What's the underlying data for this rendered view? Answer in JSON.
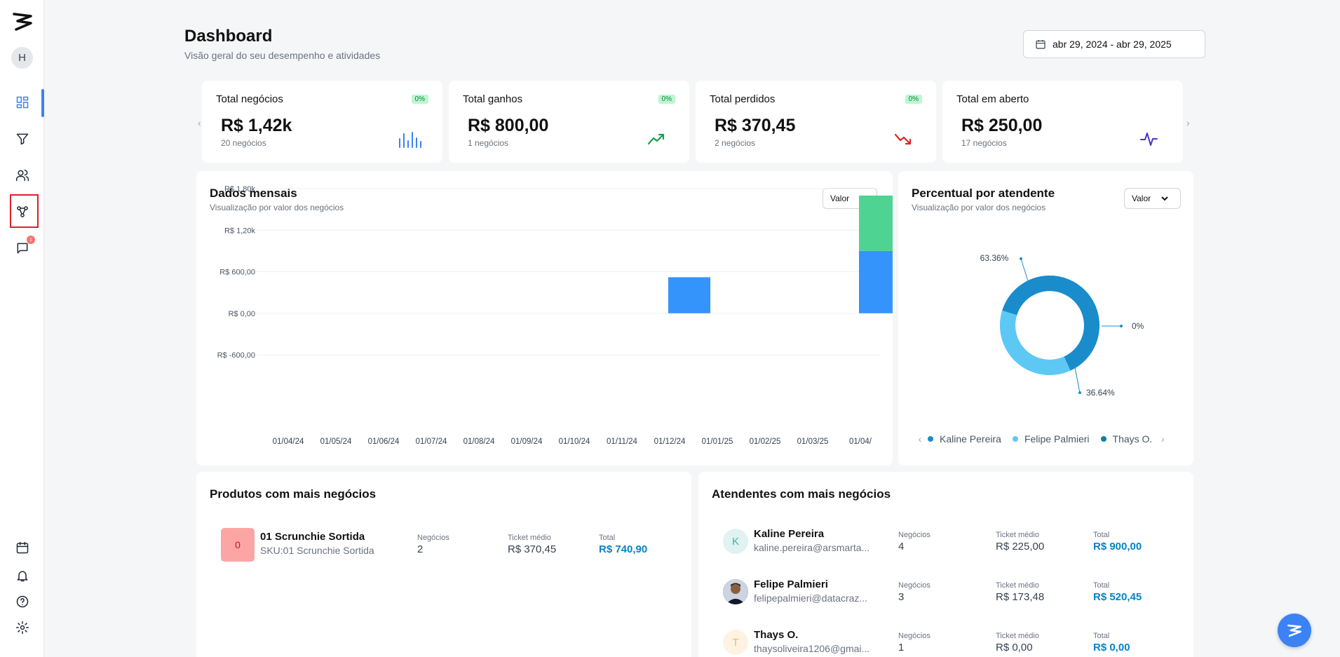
{
  "sidebar": {
    "avatar_initial": "H",
    "notification_count": "1"
  },
  "header": {
    "title": "Dashboard",
    "subtitle": "Visão geral do seu desempenho e atividades",
    "date_range": "abr 29, 2024 - abr 29, 2025"
  },
  "kpis": [
    {
      "label": "Total negócios",
      "badge": "0%",
      "value": "R$ 1,42k",
      "sub": "20 negócios",
      "icon": "bar-chart-icon",
      "color": "#3b82f6"
    },
    {
      "label": "Total ganhos",
      "badge": "0%",
      "value": "R$ 800,00",
      "sub": "1 negócios",
      "icon": "trending-up-icon",
      "color": "#16a34a"
    },
    {
      "label": "Total perdidos",
      "badge": "0%",
      "value": "R$ 370,45",
      "sub": "2 negócios",
      "icon": "trending-down-icon",
      "color": "#dc2626"
    },
    {
      "label": "Total em aberto",
      "badge": "",
      "value": "R$ 250,00",
      "sub": "17 negócios",
      "icon": "activity-icon",
      "color": "#4338ca"
    }
  ],
  "monthly": {
    "title": "Dados mensais",
    "subtitle": "Visualização por valor dos negócios",
    "select": "Valor"
  },
  "percent": {
    "title": "Percentual por atendente",
    "subtitle": "Visualização por valor dos negócios",
    "select": "Valor",
    "labels": [
      "63.36%",
      "0%",
      "36.64%"
    ]
  },
  "chart_data": [
    {
      "type": "bar",
      "title": "Dados mensais",
      "categories": [
        "01/04/24",
        "01/05/24",
        "01/06/24",
        "01/07/24",
        "01/08/24",
        "01/09/24",
        "01/10/24",
        "01/11/24",
        "01/12/24",
        "01/01/25",
        "01/02/25",
        "01/03/25",
        "01/04/"
      ],
      "series": [
        {
          "values": [
            0,
            0,
            0,
            0,
            0,
            0,
            0,
            0,
            520,
            0,
            0,
            0,
            900
          ],
          "color": "#3593fc"
        },
        {
          "values": [
            0,
            0,
            0,
            0,
            0,
            0,
            0,
            0,
            0,
            0,
            0,
            0,
            800
          ],
          "color": "#4fd392"
        }
      ],
      "y_ticks": [
        "R$ 1,80k",
        "R$ 1,20k",
        "R$ 600,00",
        "R$ 0,00",
        "R$ -600,00"
      ],
      "ylim": [
        -600,
        1800
      ],
      "grid": true
    },
    {
      "type": "pie",
      "title": "Percentual por atendente",
      "categories": [
        "Kaline Pereira",
        "Felipe Palmieri",
        "Thays O."
      ],
      "values": [
        63.36,
        36.64,
        0
      ],
      "colors": [
        "#1a8ccb",
        "#5ec8f5",
        "#0f7fa8"
      ]
    }
  ],
  "products": {
    "title": "Produtos com mais negócios",
    "rows": [
      {
        "tile": "0",
        "name": "01 Scrunchie Sortida",
        "sku": "SKU:01 Scrunchie Sortida",
        "negocios_label": "Negócios",
        "negocios": "2",
        "ticket_label": "Ticket médio",
        "ticket": "R$ 370,45",
        "total_label": "Total",
        "total": "R$ 740,90"
      }
    ]
  },
  "attendants": {
    "title": "Atendentes com mais negócios",
    "rows": [
      {
        "initial": "K",
        "name": "Kaline Pereira",
        "email": "kaline.pereira@arsmarta...",
        "negocios_label": "Negócios",
        "negocios": "4",
        "ticket_label": "Ticket médio",
        "ticket": "R$ 225,00",
        "total_label": "Total",
        "total": "R$ 900,00"
      },
      {
        "initial": "",
        "name": "Felipe Palmieri",
        "email": "felipepalmieri@datacraz...",
        "negocios_label": "Negócios",
        "negocios": "3",
        "ticket_label": "Ticket médio",
        "ticket": "R$ 173,48",
        "total_label": "Total",
        "total": "R$ 520,45"
      },
      {
        "initial": "T",
        "name": "Thays O.",
        "email": "thaysoliveira1206@gmai...",
        "negocios_label": "Negócios",
        "negocios": "1",
        "ticket_label": "Ticket médio",
        "ticket": "R$ 0,00",
        "total_label": "Total",
        "total": "R$ 0,00"
      }
    ]
  }
}
